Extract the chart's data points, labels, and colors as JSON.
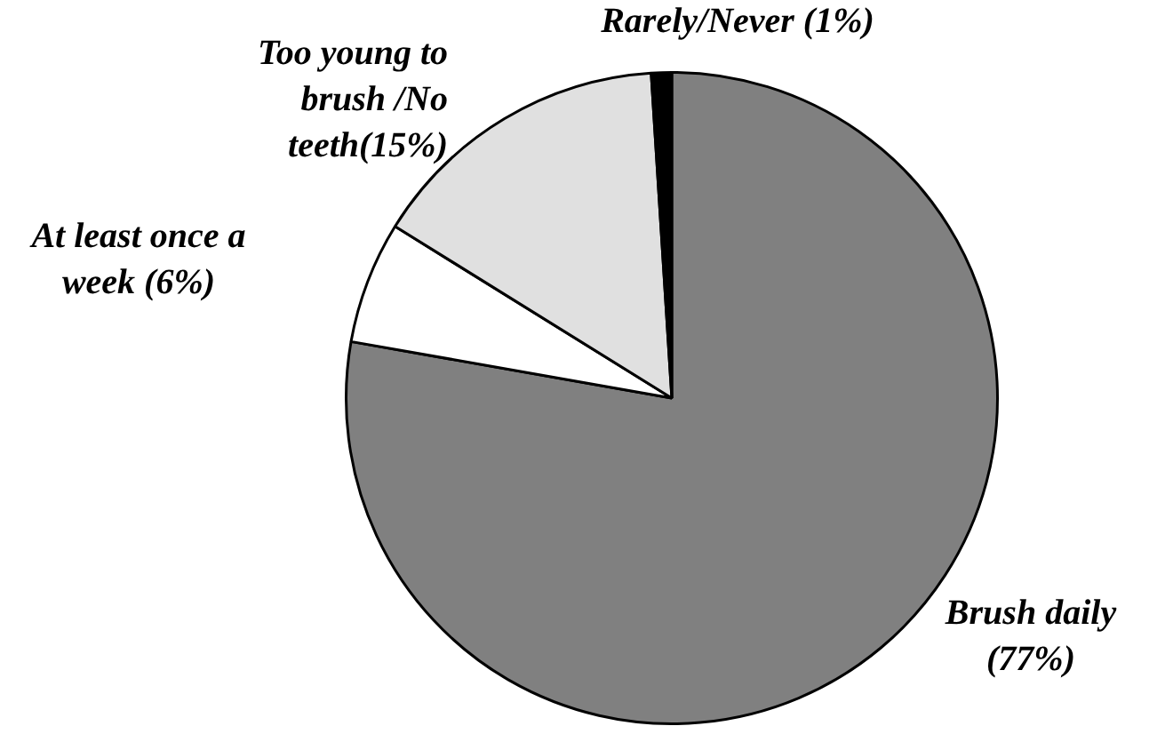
{
  "chart_data": {
    "type": "pie",
    "categories": [
      "Brush daily (77%)",
      "At least once a week (6%)",
      "Too young to brush /No teeth(15%)",
      "Rarely/Never (1%)"
    ],
    "values": [
      77,
      6,
      15,
      1
    ],
    "colors": [
      "#808080",
      "#ffffff",
      "#e0e0e0",
      "#000000"
    ],
    "legend": false
  }
}
